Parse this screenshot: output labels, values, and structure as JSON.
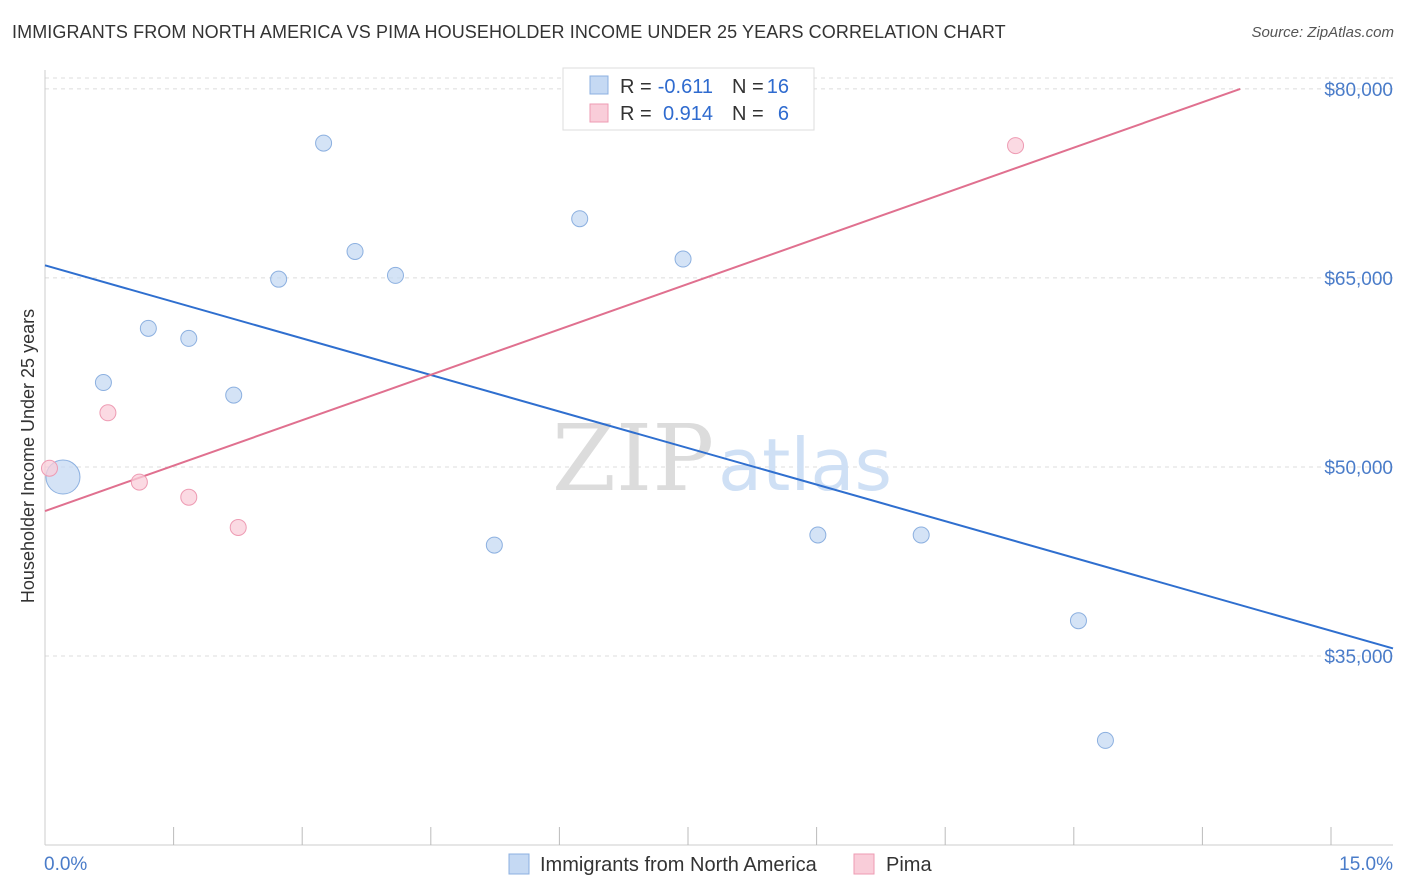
{
  "title": "IMMIGRANTS FROM NORTH AMERICA VS PIMA HOUSEHOLDER INCOME UNDER 25 YEARS CORRELATION CHART",
  "source": "Source: ZipAtlas.com",
  "watermark": {
    "zip": "ZIP",
    "atlas": "atlas"
  },
  "colors": {
    "blue_fill": "#c5d9f3",
    "blue_stroke": "#8cb0e0",
    "blue_line": "#2f6fcf",
    "pink_fill": "#f9cdd9",
    "pink_stroke": "#ee9bb3",
    "pink_line": "#e0708f",
    "tick_label": "#4a7cc9",
    "grid": "#dcdcdc"
  },
  "legend": {
    "rows": [
      {
        "r_label": "R =",
        "r_value": "-0.611",
        "n_label": "N =",
        "n_value": "16",
        "series": "blue"
      },
      {
        "r_label": "R =",
        "r_value": "0.914",
        "n_label": "N =",
        "n_value": "6",
        "series": "pink"
      }
    ]
  },
  "bottom_legend": [
    {
      "label": "Immigrants from North America",
      "series": "blue"
    },
    {
      "label": "Pima",
      "series": "pink"
    }
  ],
  "chart_data": {
    "type": "scatter",
    "title": "IMMIGRANTS FROM NORTH AMERICA VS PIMA HOUSEHOLDER INCOME UNDER 25 YEARS CORRELATION CHART",
    "xlabel": "",
    "ylabel": "Householder Income Under 25 years",
    "xlim": [
      0,
      15
    ],
    "ylim": [
      20000,
      81500
    ],
    "x_tick_labels": {
      "left": "0.0%",
      "right": "15.0%"
    },
    "y_ticks": [
      {
        "value": 80000,
        "label": "$80,000"
      },
      {
        "value": 65000,
        "label": "$65,000"
      },
      {
        "value": 50000,
        "label": "$50,000"
      },
      {
        "value": 35000,
        "label": "$35,000"
      }
    ],
    "grid": true,
    "series": [
      {
        "name": "Immigrants from North America",
        "color": "blue",
        "r": -0.611,
        "n": 16,
        "points": [
          {
            "x": 0.2,
            "y": 49200,
            "size": "large"
          },
          {
            "x": 0.65,
            "y": 56700
          },
          {
            "x": 1.15,
            "y": 61000
          },
          {
            "x": 1.6,
            "y": 60200
          },
          {
            "x": 2.1,
            "y": 55700
          },
          {
            "x": 2.6,
            "y": 64900
          },
          {
            "x": 3.1,
            "y": 75700
          },
          {
            "x": 3.45,
            "y": 67100
          },
          {
            "x": 3.9,
            "y": 65200
          },
          {
            "x": 5.0,
            "y": 43800
          },
          {
            "x": 5.95,
            "y": 69700
          },
          {
            "x": 7.1,
            "y": 66500
          },
          {
            "x": 8.6,
            "y": 44600
          },
          {
            "x": 9.75,
            "y": 44600
          },
          {
            "x": 11.5,
            "y": 37800
          },
          {
            "x": 11.8,
            "y": 28300
          }
        ],
        "trend": {
          "x0": 0,
          "y0": 66000,
          "x1": 15,
          "y1": 35600
        }
      },
      {
        "name": "Pima",
        "color": "pink",
        "r": 0.914,
        "n": 6,
        "points": [
          {
            "x": 0.05,
            "y": 49900
          },
          {
            "x": 0.7,
            "y": 54300
          },
          {
            "x": 1.05,
            "y": 48800
          },
          {
            "x": 1.6,
            "y": 47600
          },
          {
            "x": 2.15,
            "y": 45200
          },
          {
            "x": 10.8,
            "y": 75500
          }
        ],
        "trend": {
          "x0": 0,
          "y0": 46500,
          "x1": 13.3,
          "y1": 80000
        }
      }
    ]
  }
}
